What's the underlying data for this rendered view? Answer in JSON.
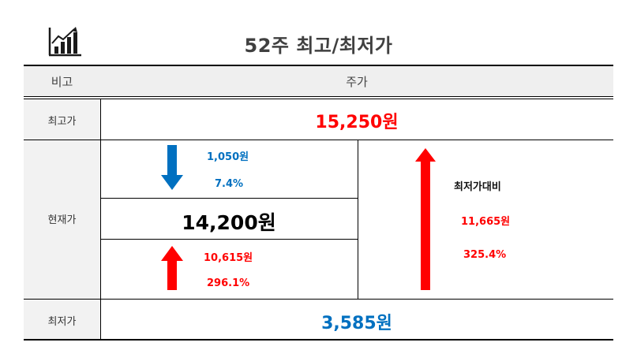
{
  "title": "52주 최고/최저가",
  "header": {
    "col1": "비고",
    "col2": "주가"
  },
  "rows": {
    "high": {
      "label": "최고가",
      "value": "15,250원"
    },
    "current": {
      "label": "현재가",
      "value": "14,200원"
    },
    "low": {
      "label": "최저가",
      "value": "3,585원"
    }
  },
  "from_high": {
    "amount": "1,050원",
    "percent": "7.4%"
  },
  "from_low": {
    "amount": "10,615원",
    "percent": "296.1%"
  },
  "low_vs_high": {
    "label": "최저가대비",
    "amount": "11,665원",
    "percent": "325.4%"
  },
  "icons": {
    "title": "bar-chart-growth-icon",
    "down": "arrow-down-icon",
    "up": "arrow-up-icon"
  },
  "colors": {
    "up": "#ff0000",
    "down": "#0070c0",
    "header_bg": "#efefef"
  }
}
